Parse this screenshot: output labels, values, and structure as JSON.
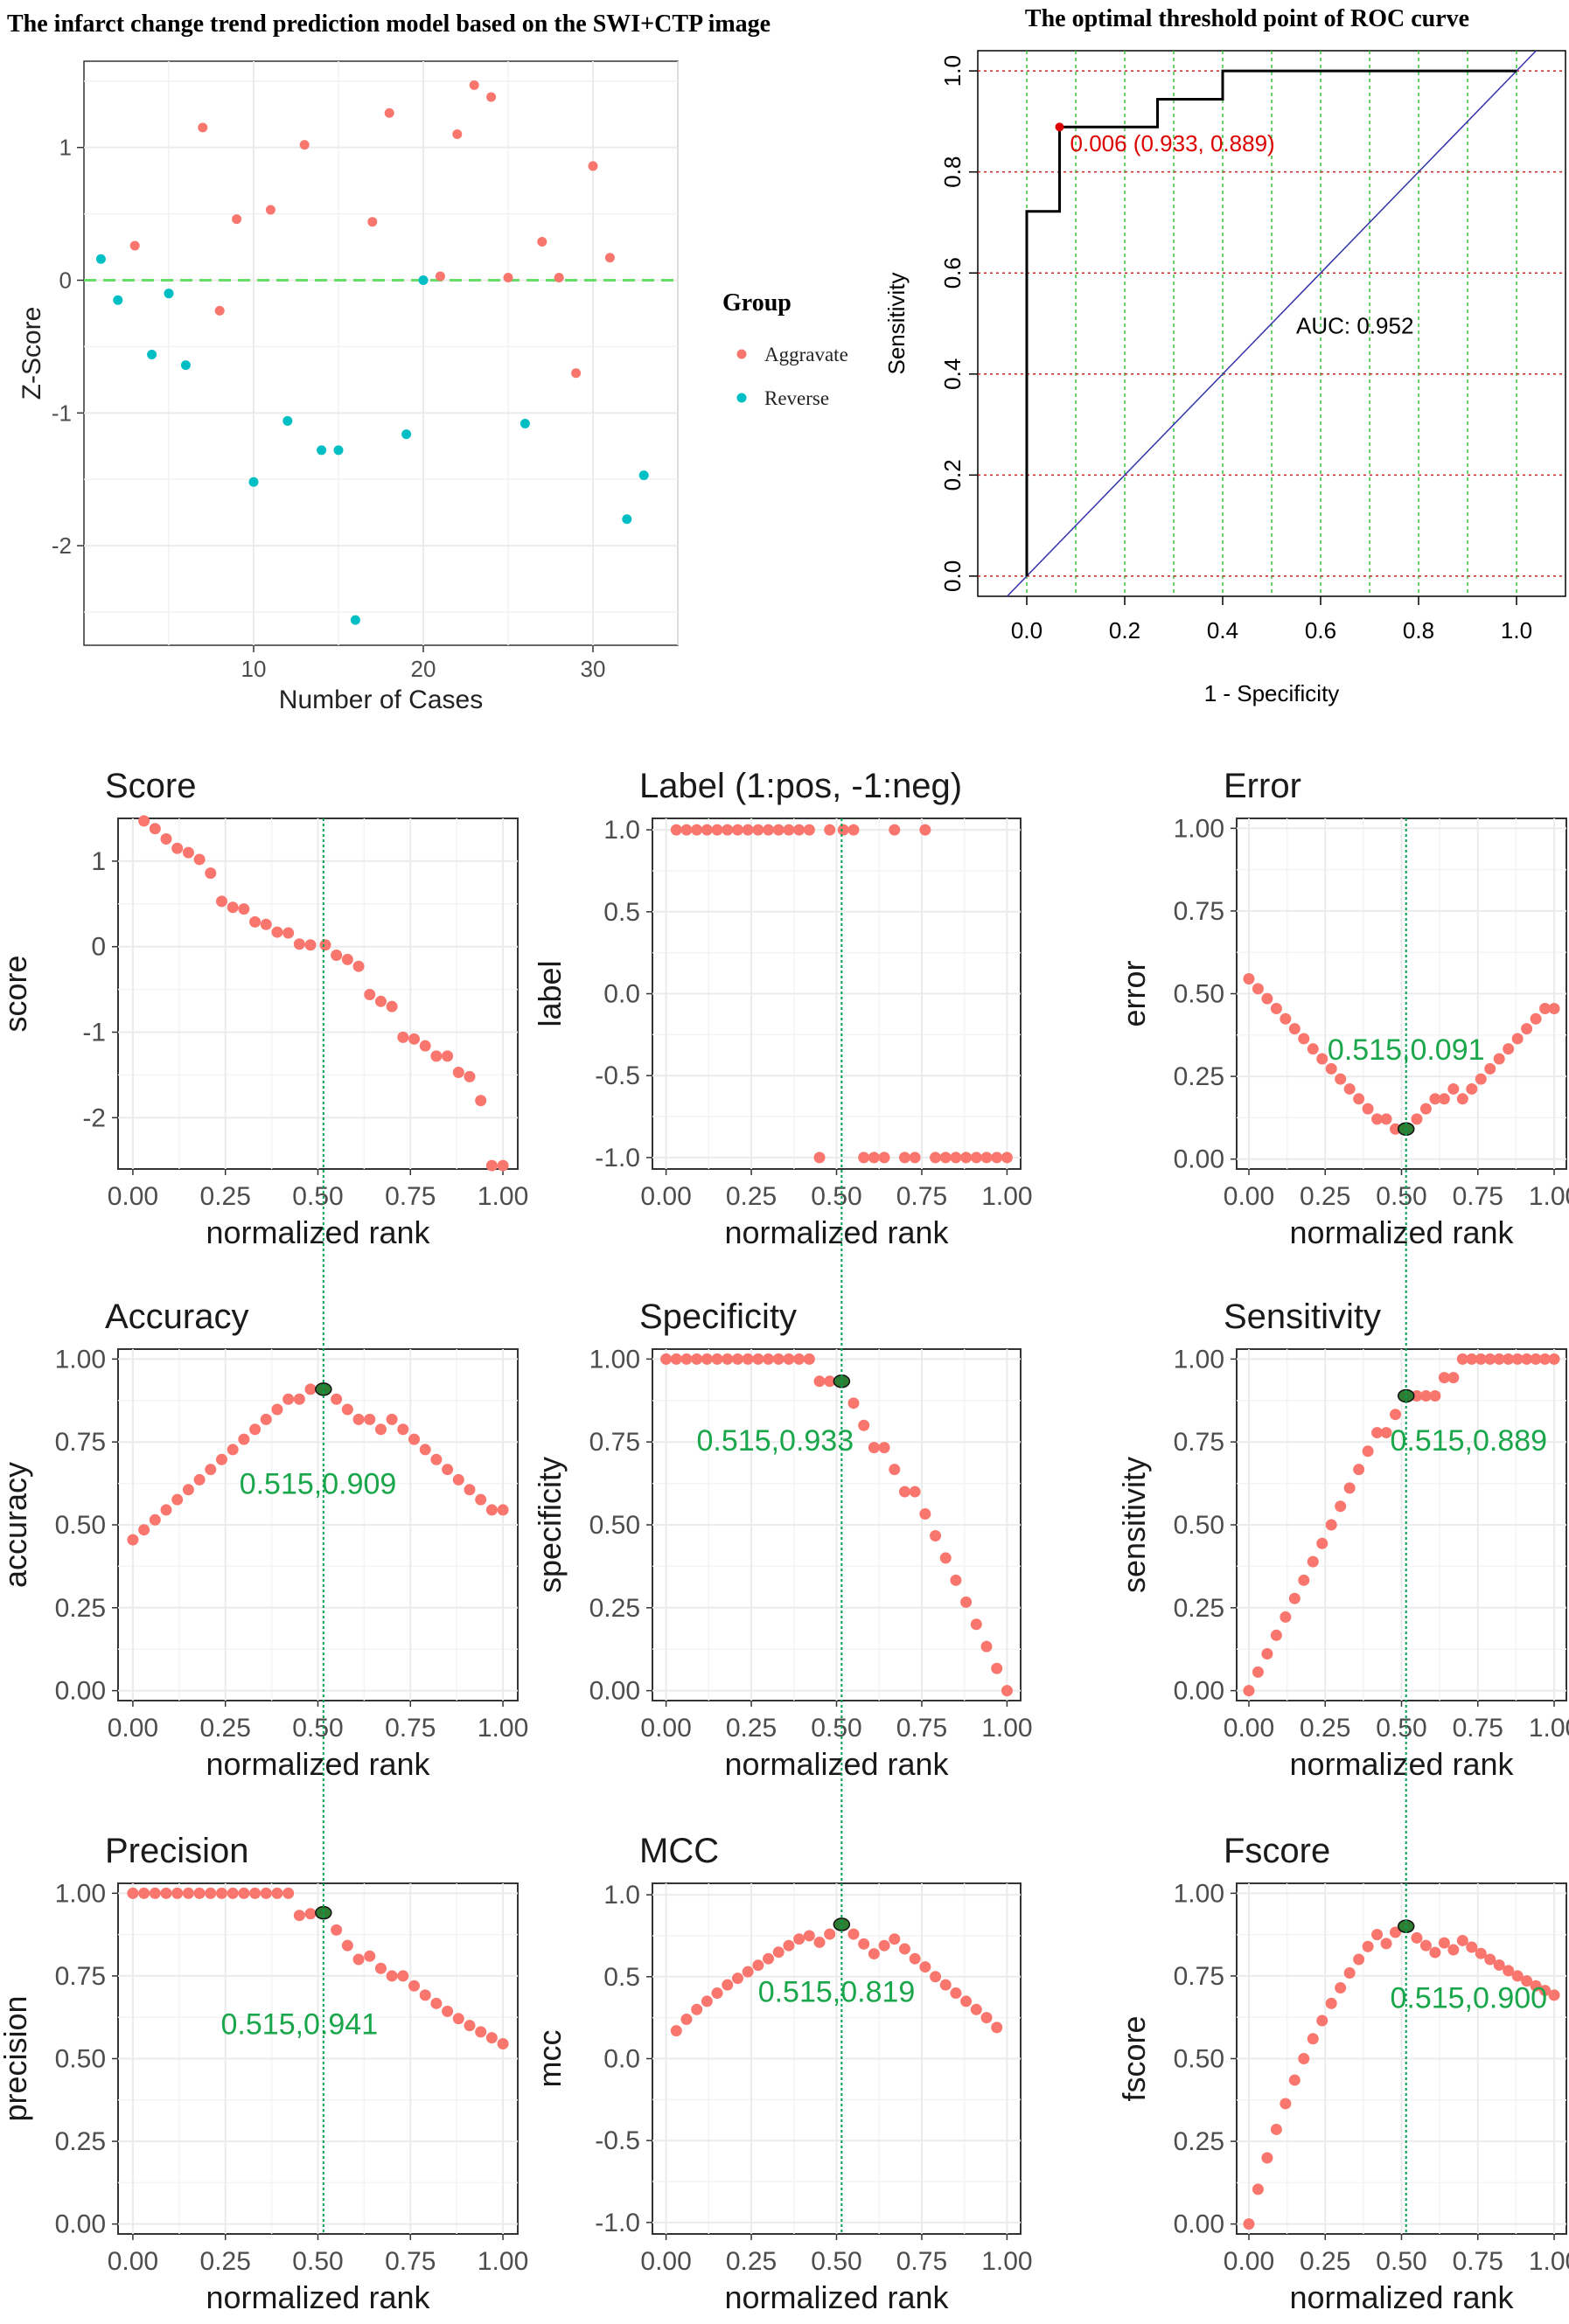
{
  "chart_data": [
    {
      "id": "zscore",
      "type": "scatter",
      "title": "The infarct change trend prediction model based on the SWI+CTP image",
      "xlabel": "Number of Cases",
      "ylabel": "Z-Score",
      "xlim": [
        0,
        35
      ],
      "ylim": [
        -2.75,
        1.65
      ],
      "xticks": [
        10,
        20,
        30
      ],
      "yticks": [
        -2,
        -1,
        0,
        1
      ],
      "ref_line": 0,
      "legend": {
        "title": "Group",
        "items": [
          "Aggravate",
          "Reverse"
        ]
      },
      "series": [
        {
          "name": "Aggravate",
          "color": "#f8766d",
          "points": [
            [
              3,
              0.26
            ],
            [
              7,
              1.15
            ],
            [
              8,
              -0.23
            ],
            [
              9,
              0.46
            ],
            [
              11,
              0.53
            ],
            [
              13,
              1.02
            ],
            [
              17,
              0.44
            ],
            [
              18,
              1.26
            ],
            [
              21,
              0.03
            ],
            [
              22,
              1.1
            ],
            [
              23,
              1.47
            ],
            [
              24,
              1.38
            ],
            [
              25,
              0.02
            ],
            [
              27,
              0.29
            ],
            [
              28,
              0.02
            ],
            [
              29,
              -0.7
            ],
            [
              30,
              0.86
            ],
            [
              31,
              0.17
            ]
          ]
        },
        {
          "name": "Reverse",
          "color": "#00bfc4",
          "points": [
            [
              1,
              0.16
            ],
            [
              2,
              -0.15
            ],
            [
              4,
              -0.56
            ],
            [
              5,
              -0.1
            ],
            [
              6,
              -0.64
            ],
            [
              10,
              -1.52
            ],
            [
              12,
              -1.06
            ],
            [
              14,
              -1.28
            ],
            [
              15,
              -1.28
            ],
            [
              16,
              -2.56
            ],
            [
              19,
              -1.16
            ],
            [
              20,
              0.0
            ],
            [
              26,
              -1.08
            ],
            [
              32,
              -1.8
            ],
            [
              33,
              -1.47
            ]
          ]
        }
      ]
    },
    {
      "id": "roc",
      "type": "line",
      "title": "The optimal threshold point of ROC curve",
      "xlabel": "1 - Specificity",
      "ylabel": "Sensitivity",
      "xlim": [
        -0.1,
        1.1
      ],
      "ylim": [
        -0.04,
        1.04
      ],
      "xticks": [
        "0.0",
        "0.2",
        "0.4",
        "0.6",
        "0.8",
        "1.0"
      ],
      "yticks": [
        "0.0",
        "0.2",
        "0.4",
        "0.6",
        "0.8",
        "1.0"
      ],
      "curve": [
        [
          0,
          0
        ],
        [
          0,
          0.722
        ],
        [
          0.067,
          0.722
        ],
        [
          0.067,
          0.889
        ],
        [
          0.267,
          0.889
        ],
        [
          0.267,
          0.944
        ],
        [
          0.4,
          0.944
        ],
        [
          0.4,
          1.0
        ],
        [
          1.0,
          1.0
        ]
      ],
      "best_point": {
        "x": 0.067,
        "y": 0.889,
        "label": "0.006 (0.933, 0.889)"
      },
      "auc_label": "AUC: 0.952"
    },
    {
      "id": "score",
      "type": "scatter",
      "title": "Score",
      "xlabel": "normalized rank",
      "ylabel": "score",
      "ylim": [
        -2.6,
        1.5
      ],
      "yticks": [
        "-2",
        "-1",
        "0",
        "1"
      ],
      "ytickvals": [
        -2,
        -1,
        0,
        1
      ],
      "x": [
        0.03,
        0.06,
        0.09,
        0.12,
        0.15,
        0.18,
        0.21,
        0.24,
        0.27,
        0.3,
        0.33,
        0.36,
        0.39,
        0.42,
        0.45,
        0.48,
        0.52,
        0.55,
        0.58,
        0.61,
        0.64,
        0.67,
        0.7,
        0.73,
        0.76,
        0.79,
        0.82,
        0.85,
        0.88,
        0.91,
        0.94,
        0.97,
        1.0
      ],
      "values": [
        1.47,
        1.38,
        1.26,
        1.15,
        1.1,
        1.02,
        0.86,
        0.53,
        0.46,
        0.44,
        0.29,
        0.26,
        0.17,
        0.16,
        0.03,
        0.02,
        0.02,
        -0.1,
        -0.15,
        -0.23,
        -0.56,
        -0.64,
        -0.7,
        -1.06,
        -1.08,
        -1.16,
        -1.28,
        -1.28,
        -1.47,
        -1.52,
        -1.8,
        -2.56,
        -2.56
      ]
    },
    {
      "id": "label",
      "type": "scatter",
      "title": "Label (1:pos, -1:neg)",
      "xlabel": "normalized rank",
      "ylabel": "label",
      "ylim": [
        -1.07,
        1.07
      ],
      "yticks": [
        "-1.0",
        "-0.5",
        "0.0",
        "0.5",
        "1.0"
      ],
      "ytickvals": [
        -1,
        -0.5,
        0,
        0.5,
        1
      ],
      "x": [
        0.03,
        0.06,
        0.09,
        0.12,
        0.15,
        0.18,
        0.21,
        0.24,
        0.27,
        0.3,
        0.33,
        0.36,
        0.39,
        0.42,
        0.45,
        0.48,
        0.52,
        0.55,
        0.58,
        0.61,
        0.64,
        0.67,
        0.7,
        0.73,
        0.76,
        0.79,
        0.82,
        0.85,
        0.88,
        0.91,
        0.94,
        0.97,
        1.0
      ],
      "values": [
        1,
        1,
        1,
        1,
        1,
        1,
        1,
        1,
        1,
        1,
        1,
        1,
        1,
        1,
        -1,
        1,
        1,
        1,
        -1,
        -1,
        -1,
        1,
        -1,
        -1,
        1,
        -1,
        -1,
        -1,
        -1,
        -1,
        -1,
        -1,
        -1
      ]
    },
    {
      "id": "error",
      "type": "scatter",
      "title": "Error",
      "xlabel": "normalized rank",
      "ylabel": "error",
      "ylim": [
        -0.03,
        1.03
      ],
      "yticks": [
        "0.00",
        "0.25",
        "0.50",
        "0.75",
        "1.00"
      ],
      "ytickvals": [
        0,
        0.25,
        0.5,
        0.75,
        1
      ],
      "x": [
        0,
        0.03,
        0.06,
        0.09,
        0.12,
        0.15,
        0.18,
        0.21,
        0.24,
        0.27,
        0.3,
        0.33,
        0.36,
        0.39,
        0.42,
        0.45,
        0.48,
        0.52,
        0.55,
        0.58,
        0.61,
        0.64,
        0.67,
        0.7,
        0.73,
        0.76,
        0.79,
        0.82,
        0.85,
        0.88,
        0.91,
        0.94,
        0.97,
        1.0
      ],
      "values": [
        0.545,
        0.515,
        0.485,
        0.455,
        0.424,
        0.394,
        0.364,
        0.333,
        0.303,
        0.273,
        0.242,
        0.212,
        0.182,
        0.152,
        0.121,
        0.121,
        0.091,
        0.091,
        0.121,
        0.152,
        0.182,
        0.182,
        0.212,
        0.182,
        0.212,
        0.242,
        0.273,
        0.303,
        0.333,
        0.364,
        0.394,
        0.424,
        0.455,
        0.455
      ],
      "optimal": {
        "x": 0.515,
        "y": 0.091,
        "label": "0.515,0.091"
      }
    },
    {
      "id": "accuracy",
      "type": "scatter",
      "title": "Accuracy",
      "xlabel": "normalized rank",
      "ylabel": "accuracy",
      "ylim": [
        -0.03,
        1.03
      ],
      "yticks": [
        "0.00",
        "0.25",
        "0.50",
        "0.75",
        "1.00"
      ],
      "ytickvals": [
        0,
        0.25,
        0.5,
        0.75,
        1
      ],
      "x": [
        0,
        0.03,
        0.06,
        0.09,
        0.12,
        0.15,
        0.18,
        0.21,
        0.24,
        0.27,
        0.3,
        0.33,
        0.36,
        0.39,
        0.42,
        0.45,
        0.48,
        0.52,
        0.55,
        0.58,
        0.61,
        0.64,
        0.67,
        0.7,
        0.73,
        0.76,
        0.79,
        0.82,
        0.85,
        0.88,
        0.91,
        0.94,
        0.97,
        1.0
      ],
      "values": [
        0.455,
        0.485,
        0.515,
        0.545,
        0.576,
        0.606,
        0.636,
        0.667,
        0.697,
        0.727,
        0.758,
        0.788,
        0.818,
        0.848,
        0.879,
        0.879,
        0.909,
        0.909,
        0.879,
        0.848,
        0.818,
        0.818,
        0.788,
        0.818,
        0.788,
        0.758,
        0.727,
        0.697,
        0.667,
        0.636,
        0.606,
        0.576,
        0.545,
        0.545
      ],
      "optimal": {
        "x": 0.515,
        "y": 0.909,
        "label": "0.515,0.909"
      }
    },
    {
      "id": "specificity",
      "type": "scatter",
      "title": "Specificity",
      "xlabel": "normalized rank",
      "ylabel": "specificity",
      "ylim": [
        -0.03,
        1.03
      ],
      "yticks": [
        "0.00",
        "0.25",
        "0.50",
        "0.75",
        "1.00"
      ],
      "ytickvals": [
        0,
        0.25,
        0.5,
        0.75,
        1
      ],
      "x": [
        0,
        0.03,
        0.06,
        0.09,
        0.12,
        0.15,
        0.18,
        0.21,
        0.24,
        0.27,
        0.3,
        0.33,
        0.36,
        0.39,
        0.42,
        0.45,
        0.48,
        0.52,
        0.55,
        0.58,
        0.61,
        0.64,
        0.67,
        0.7,
        0.73,
        0.76,
        0.79,
        0.82,
        0.85,
        0.88,
        0.91,
        0.94,
        0.97,
        1.0
      ],
      "values": [
        1,
        1,
        1,
        1,
        1,
        1,
        1,
        1,
        1,
        1,
        1,
        1,
        1,
        1,
        1,
        0.933,
        0.933,
        0.933,
        0.867,
        0.8,
        0.733,
        0.733,
        0.667,
        0.6,
        0.6,
        0.533,
        0.467,
        0.4,
        0.333,
        0.267,
        0.2,
        0.133,
        0.067,
        0
      ],
      "optimal": {
        "x": 0.515,
        "y": 0.933,
        "label": "0.515,0.933"
      }
    },
    {
      "id": "sensitivity",
      "type": "scatter",
      "title": "Sensitivity",
      "xlabel": "normalized rank",
      "ylabel": "sensitivity",
      "ylim": [
        -0.03,
        1.03
      ],
      "yticks": [
        "0.00",
        "0.25",
        "0.50",
        "0.75",
        "1.00"
      ],
      "ytickvals": [
        0,
        0.25,
        0.5,
        0.75,
        1
      ],
      "x": [
        0,
        0.03,
        0.06,
        0.09,
        0.12,
        0.15,
        0.18,
        0.21,
        0.24,
        0.27,
        0.3,
        0.33,
        0.36,
        0.39,
        0.42,
        0.45,
        0.48,
        0.52,
        0.55,
        0.58,
        0.61,
        0.64,
        0.67,
        0.7,
        0.73,
        0.76,
        0.79,
        0.82,
        0.85,
        0.88,
        0.91,
        0.94,
        0.97,
        1.0
      ],
      "values": [
        0,
        0.056,
        0.111,
        0.167,
        0.222,
        0.278,
        0.333,
        0.389,
        0.444,
        0.5,
        0.556,
        0.611,
        0.667,
        0.722,
        0.778,
        0.778,
        0.833,
        0.889,
        0.889,
        0.889,
        0.889,
        0.944,
        0.944,
        1,
        1,
        1,
        1,
        1,
        1,
        1,
        1,
        1,
        1,
        1
      ],
      "optimal": {
        "x": 0.515,
        "y": 0.889,
        "label": "0.515,0.889"
      }
    },
    {
      "id": "precision",
      "type": "scatter",
      "title": "Precision",
      "xlabel": "normalized rank",
      "ylabel": "precision",
      "ylim": [
        -0.03,
        1.03
      ],
      "yticks": [
        "0.00",
        "0.25",
        "0.50",
        "0.75",
        "1.00"
      ],
      "ytickvals": [
        0,
        0.25,
        0.5,
        0.75,
        1
      ],
      "x": [
        0,
        0.03,
        0.06,
        0.09,
        0.12,
        0.15,
        0.18,
        0.21,
        0.24,
        0.27,
        0.3,
        0.33,
        0.36,
        0.39,
        0.42,
        0.45,
        0.48,
        0.52,
        0.55,
        0.58,
        0.61,
        0.64,
        0.67,
        0.7,
        0.73,
        0.76,
        0.79,
        0.82,
        0.85,
        0.88,
        0.91,
        0.94,
        0.97,
        1.0
      ],
      "values": [
        1,
        1,
        1,
        1,
        1,
        1,
        1,
        1,
        1,
        1,
        1,
        1,
        1,
        1,
        1,
        0.933,
        0.938,
        0.941,
        0.889,
        0.842,
        0.8,
        0.81,
        0.773,
        0.75,
        0.75,
        0.72,
        0.692,
        0.667,
        0.643,
        0.621,
        0.6,
        0.581,
        0.563,
        0.545
      ],
      "optimal": {
        "x": 0.515,
        "y": 0.941,
        "label": "0.515,0.941"
      }
    },
    {
      "id": "mcc",
      "type": "scatter",
      "title": "MCC",
      "xlabel": "normalized rank",
      "ylabel": "mcc",
      "ylim": [
        -1.07,
        1.07
      ],
      "yticks": [
        "-1.0",
        "-0.5",
        "0.0",
        "0.5",
        "1.0"
      ],
      "ytickvals": [
        -1,
        -0.5,
        0,
        0.5,
        1
      ],
      "x": [
        0.03,
        0.06,
        0.09,
        0.12,
        0.15,
        0.18,
        0.21,
        0.24,
        0.27,
        0.3,
        0.33,
        0.36,
        0.39,
        0.42,
        0.45,
        0.48,
        0.52,
        0.55,
        0.58,
        0.61,
        0.64,
        0.67,
        0.7,
        0.73,
        0.76,
        0.79,
        0.82,
        0.85,
        0.88,
        0.91,
        0.94,
        0.97
      ],
      "values": [
        0.17,
        0.24,
        0.3,
        0.35,
        0.4,
        0.45,
        0.49,
        0.53,
        0.57,
        0.61,
        0.65,
        0.69,
        0.73,
        0.75,
        0.71,
        0.76,
        0.82,
        0.76,
        0.7,
        0.64,
        0.69,
        0.73,
        0.67,
        0.61,
        0.56,
        0.5,
        0.45,
        0.4,
        0.35,
        0.3,
        0.25,
        0.19
      ],
      "optimal": {
        "x": 0.515,
        "y": 0.819,
        "label": "0.515,0.819"
      }
    },
    {
      "id": "fscore",
      "type": "scatter",
      "title": "Fscore",
      "xlabel": "normalized rank",
      "ylabel": "fscore",
      "ylim": [
        -0.03,
        1.03
      ],
      "yticks": [
        "0.00",
        "0.25",
        "0.50",
        "0.75",
        "1.00"
      ],
      "ytickvals": [
        0,
        0.25,
        0.5,
        0.75,
        1
      ],
      "x": [
        0,
        0.03,
        0.06,
        0.09,
        0.12,
        0.15,
        0.18,
        0.21,
        0.24,
        0.27,
        0.3,
        0.33,
        0.36,
        0.39,
        0.42,
        0.45,
        0.48,
        0.52,
        0.55,
        0.58,
        0.61,
        0.64,
        0.67,
        0.7,
        0.73,
        0.76,
        0.79,
        0.82,
        0.85,
        0.88,
        0.91,
        0.94,
        0.97,
        1.0
      ],
      "values": [
        0,
        0.105,
        0.2,
        0.286,
        0.364,
        0.435,
        0.5,
        0.56,
        0.615,
        0.667,
        0.714,
        0.759,
        0.8,
        0.839,
        0.875,
        0.848,
        0.882,
        0.9,
        0.865,
        0.842,
        0.821,
        0.85,
        0.829,
        0.857,
        0.837,
        0.818,
        0.8,
        0.783,
        0.766,
        0.75,
        0.735,
        0.72,
        0.706,
        0.692
      ],
      "optimal": {
        "x": 0.515,
        "y": 0.9,
        "label": "0.515,0.900"
      }
    }
  ],
  "colors": {
    "point": "#f8766d",
    "reverse": "#00bfc4",
    "optimal_label": "#1aa64a",
    "marker_fill": "#2e7d32",
    "grid": "#ebebeb",
    "vline": "#00a050"
  },
  "common_xticks": [
    "0.00",
    "0.25",
    "0.50",
    "0.75",
    "1.00"
  ],
  "optimal_rank": 0.515
}
